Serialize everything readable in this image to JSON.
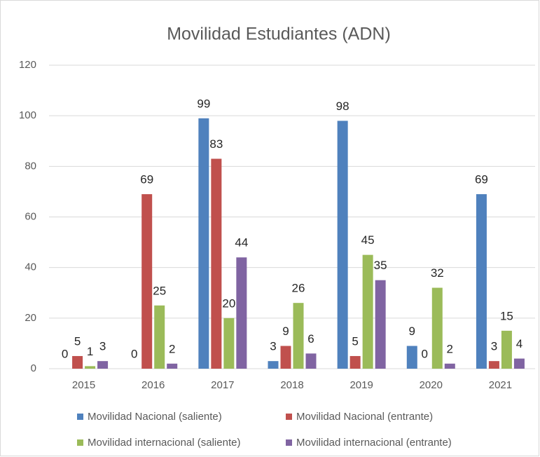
{
  "chart_data": {
    "type": "bar",
    "title": "Movilidad Estudiantes (ADN)",
    "categories": [
      "2015",
      "2016",
      "2017",
      "2018",
      "2019",
      "2020",
      "2021"
    ],
    "series": [
      {
        "name": "Movilidad Nacional (saliente)",
        "color": "#4f81bd",
        "values": [
          0,
          0,
          99,
          3,
          98,
          9,
          69
        ]
      },
      {
        "name": "Movilidad Nacional (entrante)",
        "color": "#c0504d",
        "values": [
          5,
          69,
          83,
          9,
          5,
          0,
          3
        ]
      },
      {
        "name": "Movilidad internacional (saliente)",
        "color": "#9bbb59",
        "values": [
          1,
          25,
          20,
          26,
          45,
          32,
          15
        ]
      },
      {
        "name": "Movilidad internacional (entrante)",
        "color": "#8064a2",
        "values": [
          3,
          2,
          44,
          6,
          35,
          2,
          4
        ]
      }
    ],
    "ylim": [
      0,
      120
    ],
    "yticks": [
      0,
      20,
      40,
      60,
      80,
      100,
      120
    ],
    "grid": true,
    "legend": "bottom"
  }
}
